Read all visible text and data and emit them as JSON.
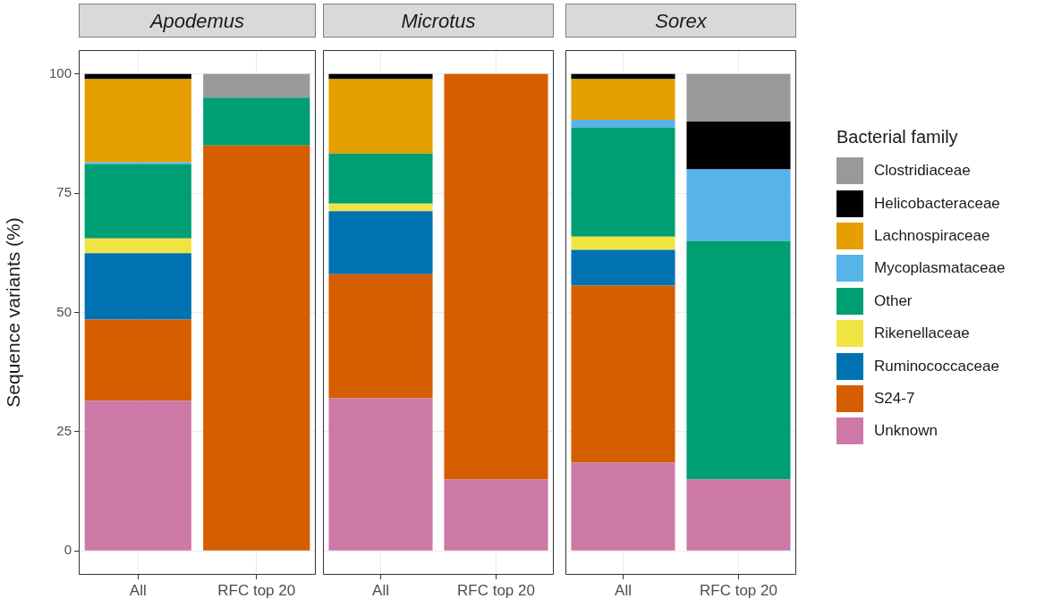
{
  "chart_data": [
    {
      "type": "bar",
      "title": "Apodemus",
      "ylabel": "Sequence variants (%)",
      "categories": [
        "All",
        "RFC top 20"
      ],
      "stacked": true,
      "ylim": [
        -5,
        105
      ],
      "yticks": [
        0,
        25,
        50,
        75,
        100
      ],
      "grid": true,
      "series": [
        {
          "color": "#cc79a7",
          "values": [
            31.5,
            0
          ]
        },
        {
          "color": "#d55e00",
          "values": [
            17,
            85
          ]
        },
        {
          "color": "#0072b2",
          "values": [
            13.9,
            0
          ]
        },
        {
          "color": "#f0e442",
          "values": [
            3.1,
            0
          ]
        },
        {
          "color": "#009e73",
          "values": [
            15.6,
            10
          ]
        },
        {
          "color": "#56b4e9",
          "values": [
            0.4,
            0
          ]
        },
        {
          "color": "#e69f00",
          "values": [
            17.4,
            0
          ]
        },
        {
          "color": "#000000",
          "values": [
            1.1,
            0
          ]
        },
        {
          "color": "#999999",
          "values": [
            0,
            5
          ]
        }
      ]
    },
    {
      "type": "bar",
      "title": "Microtus",
      "categories": [
        "All",
        "RFC top 20"
      ],
      "stacked": true,
      "ylim": [
        -5,
        105
      ],
      "yticks": [
        0,
        25,
        50,
        75,
        100
      ],
      "grid": true,
      "tick_labels": "x",
      "series": [
        {
          "color": "#cc79a7",
          "values": [
            32,
            15
          ]
        },
        {
          "color": "#d55e00",
          "values": [
            26,
            85
          ]
        },
        {
          "color": "#0072b2",
          "values": [
            13.2,
            0
          ]
        },
        {
          "color": "#f0e442",
          "values": [
            1.6,
            0
          ]
        },
        {
          "color": "#009e73",
          "values": [
            10.5,
            0
          ]
        },
        {
          "color": "#56b4e9",
          "values": [
            0,
            0
          ]
        },
        {
          "color": "#e69f00",
          "values": [
            15.6,
            0
          ]
        },
        {
          "color": "#000000",
          "values": [
            1.1,
            0
          ]
        },
        {
          "color": "#999999",
          "values": [
            0,
            0
          ]
        }
      ]
    },
    {
      "type": "bar",
      "title": "Sorex",
      "categories": [
        "All",
        "RFC top 20"
      ],
      "stacked": true,
      "ylim": [
        -5,
        105
      ],
      "yticks": [
        0,
        25,
        50,
        75,
        100
      ],
      "grid": true,
      "legend": "right",
      "legend_title": "Bacterial family",
      "tick_labels": "x",
      "series": [
        {
          "name": "Unknown",
          "color": "#cc79a7",
          "values": [
            18.5,
            15
          ]
        },
        {
          "name": "S24-7",
          "color": "#d55e00",
          "values": [
            37.1,
            0
          ]
        },
        {
          "name": "Ruminococcaceae",
          "color": "#0072b2",
          "values": [
            7.5,
            0
          ]
        },
        {
          "name": "Rikenellaceae",
          "color": "#f0e442",
          "values": [
            2.8,
            0
          ]
        },
        {
          "name": "Other",
          "color": "#009e73",
          "values": [
            22.9,
            50
          ]
        },
        {
          "name": "Mycoplasmataceae",
          "color": "#56b4e9",
          "values": [
            1.6,
            15
          ]
        },
        {
          "name": "Lachnospiraceae",
          "color": "#e69f00",
          "values": [
            8.5,
            0
          ]
        },
        {
          "name": "Helicobacteraceae",
          "color": "#000000",
          "values": [
            1.1,
            10
          ]
        },
        {
          "name": "Clostridiaceae",
          "color": "#999999",
          "values": [
            0,
            10
          ]
        }
      ]
    }
  ]
}
